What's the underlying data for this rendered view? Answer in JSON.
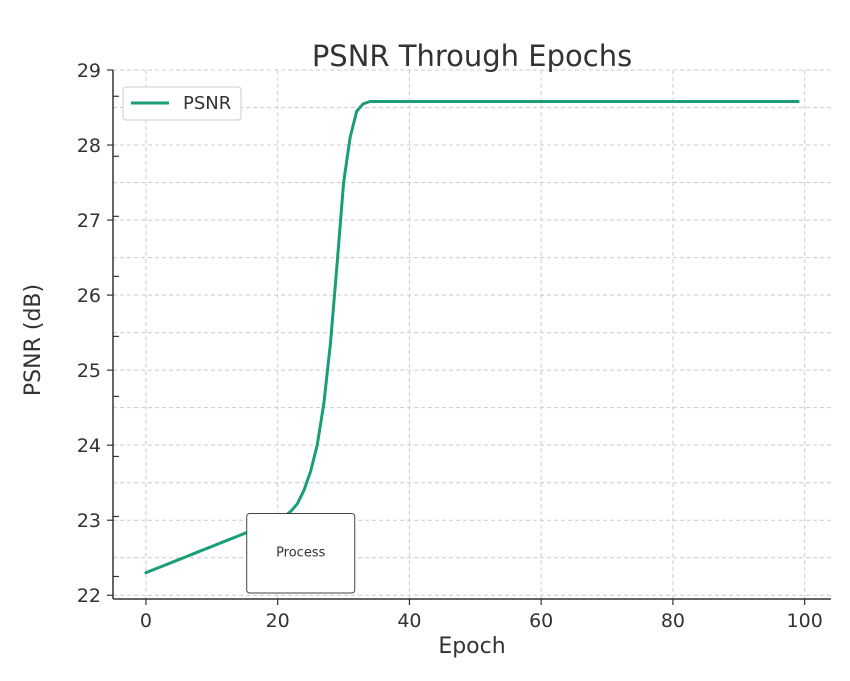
{
  "chart_data": {
    "type": "line",
    "title": "PSNR Through Epochs",
    "xlabel": "Epoch",
    "ylabel": "PSNR (dB)",
    "xlim": [
      -5,
      104
    ],
    "ylim": [
      21.95,
      29.0
    ],
    "x_ticks": [
      0,
      20,
      40,
      60,
      80,
      100
    ],
    "y_ticks": [
      22,
      23,
      24,
      25,
      26,
      27,
      28,
      29
    ],
    "grid": true,
    "legend": {
      "placement": "top-left",
      "entries": [
        "PSNR"
      ]
    },
    "series": [
      {
        "name": "PSNR",
        "color": "#1a9e77",
        "x": [
          0,
          2,
          4,
          6,
          8,
          10,
          12,
          14,
          16,
          18,
          20,
          21,
          22,
          23,
          24,
          25,
          26,
          27,
          28,
          29,
          30,
          31,
          32,
          33,
          34,
          35,
          36,
          38,
          40,
          50,
          60,
          70,
          80,
          90,
          99
        ],
        "values": [
          22.3,
          22.37,
          22.44,
          22.51,
          22.58,
          22.65,
          22.72,
          22.79,
          22.86,
          22.93,
          23.0,
          23.05,
          23.12,
          23.22,
          23.4,
          23.65,
          24.0,
          24.55,
          25.35,
          26.4,
          27.5,
          28.1,
          28.45,
          28.55,
          28.58,
          28.58,
          28.58,
          28.58,
          28.58,
          28.58,
          28.58,
          28.58,
          28.58,
          28.58,
          28.58
        ]
      }
    ],
    "annotation": {
      "text": "Process",
      "x_range": [
        15.3,
        31.7
      ],
      "y_range": [
        22.03,
        23.09
      ]
    }
  }
}
